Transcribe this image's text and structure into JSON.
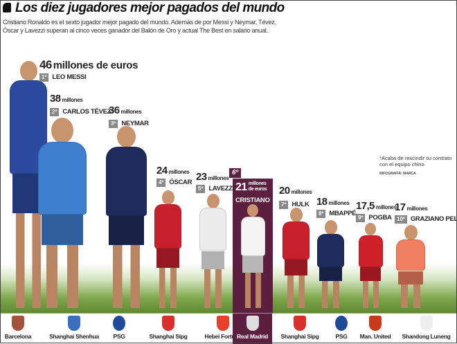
{
  "title": "Los diez jugadores mejor pagados del mundo",
  "description": [
    "Cristiano Ronaldo es el sexto jugador mejor pagado del mundo. Además de por Messi y Neymar, Tévez,",
    "Óscar y Lavezzi superan al cinco veces ganador del Balón de Oro y actual The Best en salario anual."
  ],
  "footnote": "*Acaba de rescindir su contrato con el equipo chino",
  "credit": "INFOGRAFÍA: MARCA",
  "highlight_color": "#5c1f3f",
  "players": [
    {
      "rank": "1º",
      "name": "LEO MESSI",
      "amount": "46",
      "unit": "millones de euros",
      "club": "Barcelona",
      "salary_meur": 46,
      "color": "#2b4aa0",
      "crest": "#a5523a"
    },
    {
      "rank": "2º",
      "name": "CARLOS TÉVEZ*",
      "amount": "38",
      "unit": "millones",
      "club": "Shanghai Shenhua",
      "salary_meur": 38,
      "color": "#3f7fd0",
      "crest": "#3b6fc0"
    },
    {
      "rank": "3º",
      "name": "NEYMAR",
      "amount": "36",
      "unit": "millones",
      "club": "PSG",
      "salary_meur": 36,
      "color": "#1d2c5c",
      "crest": "#1f4a9a"
    },
    {
      "rank": "4º",
      "name": "ÓSCAR",
      "amount": "24",
      "unit": "millones",
      "club": "Shanghai Sipg",
      "salary_meur": 24,
      "color": "#c8202c",
      "crest": "#d8302a"
    },
    {
      "rank": "5º",
      "name": "LAVEZZI",
      "amount": "23",
      "unit": "millones",
      "club": "Hebei Fortune",
      "salary_meur": 23,
      "color": "#ececec",
      "crest": "#e8402a"
    },
    {
      "rank": "6º",
      "name": "CRISTIANO",
      "amount": "21",
      "unit": "millones de euros",
      "club": "Real Madrid",
      "salary_meur": 21,
      "color": "#f4f4f4",
      "crest": "#ddd"
    },
    {
      "rank": "7º",
      "name": "HULK",
      "amount": "20",
      "unit": "millones",
      "club": "Shanghai Sipg",
      "salary_meur": 20,
      "color": "#c8202c",
      "crest": "#d8302a"
    },
    {
      "rank": "8º",
      "name": "MBAPPÉ",
      "amount": "18",
      "unit": "millones",
      "club": "PSG",
      "salary_meur": 18,
      "color": "#1d2c5c",
      "crest": "#1f4a9a"
    },
    {
      "rank": "9º",
      "name": "POGBA",
      "amount": "17,5",
      "unit": "millones",
      "club": "Man. United",
      "salary_meur": 17.5,
      "color": "#d0202a",
      "crest": "#c83a1a"
    },
    {
      "rank": "10º",
      "name": "GRAZIANO PELLÈ",
      "amount": "17",
      "unit": "millones",
      "club": "Shandong Luneng",
      "salary_meur": 17,
      "color": "#f08060",
      "crest": "#eee"
    }
  ]
}
